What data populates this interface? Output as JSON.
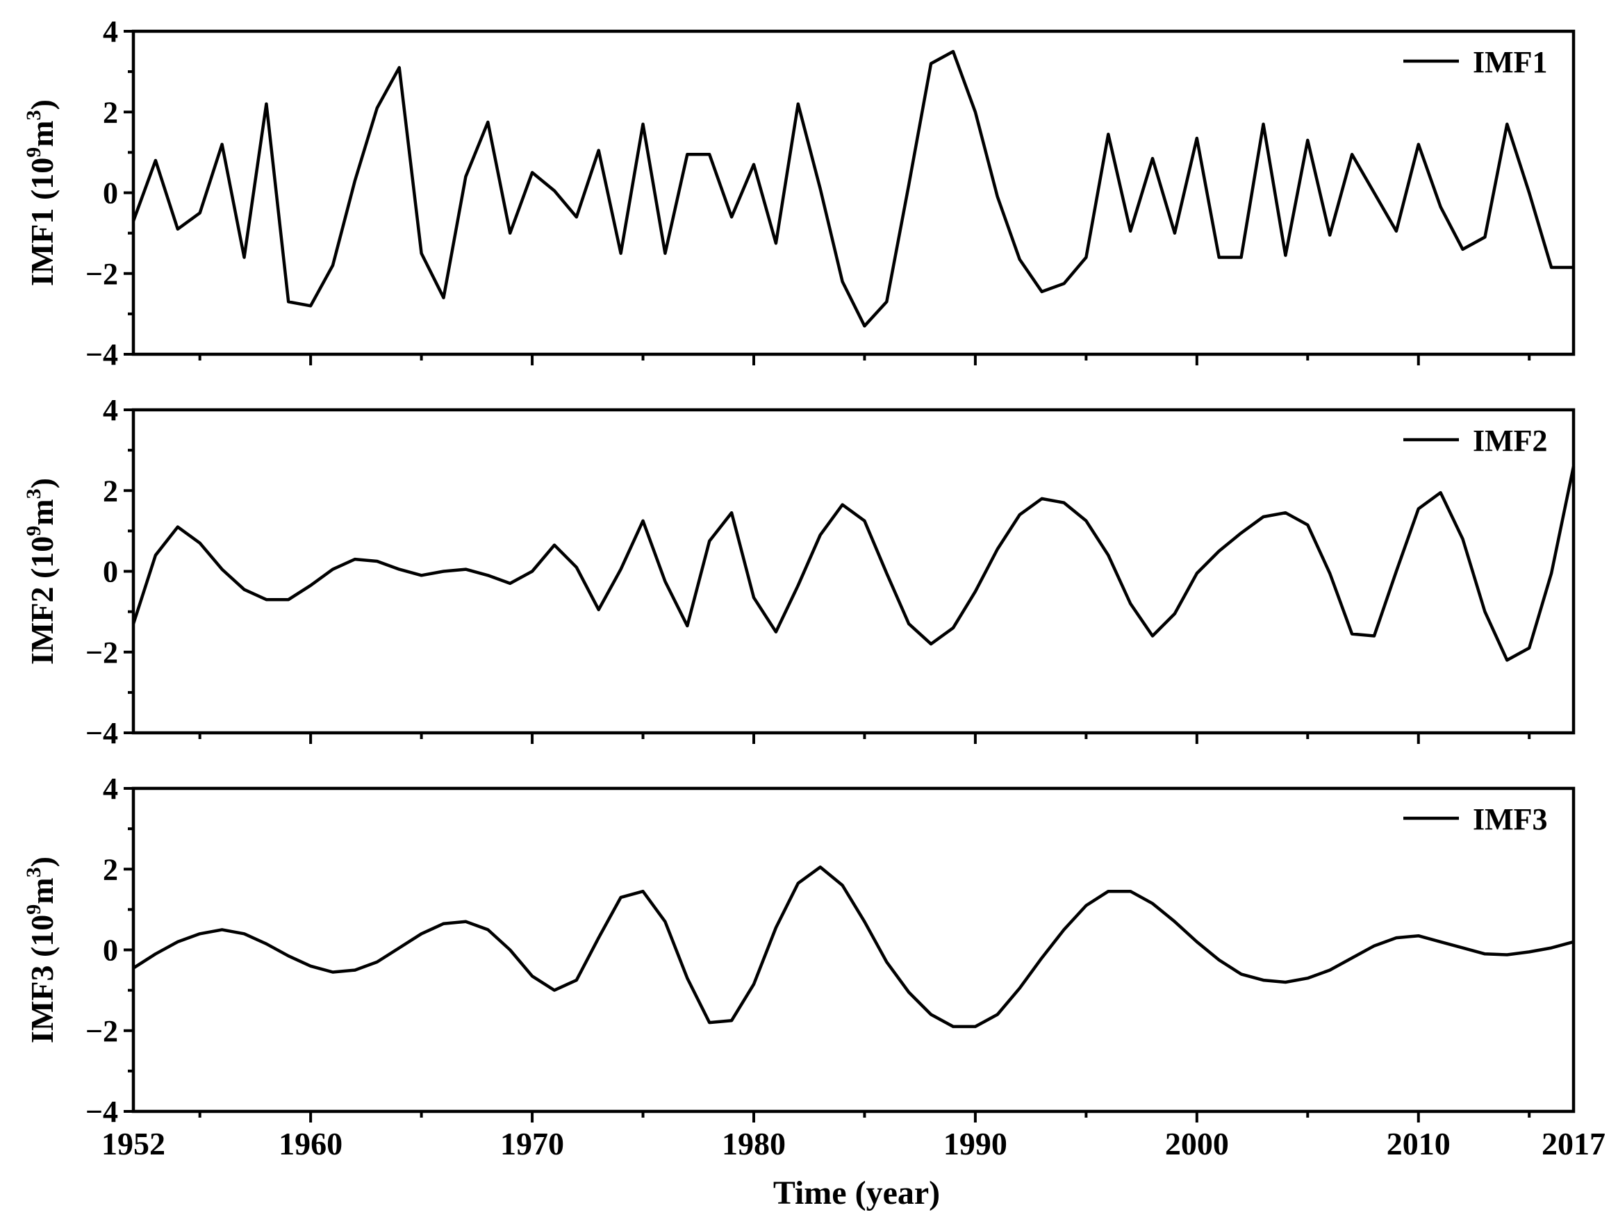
{
  "chart_data": {
    "type": "line",
    "xlabel": "Time (year)",
    "xlim": [
      1952,
      2017
    ],
    "x_tick_labels": [
      "1952",
      "1960",
      "1970",
      "1980",
      "1990",
      "2000",
      "2010",
      "2017"
    ],
    "x_ticks": [
      1952,
      1960,
      1970,
      1980,
      1990,
      2000,
      2010,
      2017
    ],
    "grid": false,
    "legend_placement": "top-right",
    "line_color": "#000000",
    "ylim": [
      -4,
      4
    ],
    "y_ticks": [
      -4,
      -2,
      0,
      2,
      4
    ],
    "y_tick_labels": [
      "−4",
      "−2",
      "0",
      "2",
      "4"
    ],
    "panels": [
      {
        "name": "IMF1",
        "ylabel_main": "IMF1 (10",
        "ylabel_exp1": "9",
        "ylabel_mid": "m",
        "ylabel_exp2": "3",
        "ylabel_end": ")",
        "legend": "IMF1",
        "x": [
          1952,
          1953,
          1954,
          1955,
          1956,
          1957,
          1958,
          1959,
          1960,
          1961,
          1962,
          1963,
          1964,
          1965,
          1966,
          1967,
          1968,
          1969,
          1970,
          1971,
          1972,
          1973,
          1974,
          1975,
          1976,
          1977,
          1978,
          1979,
          1980,
          1981,
          1982,
          1983,
          1984,
          1985,
          1986,
          1987,
          1988,
          1989,
          1990,
          1991,
          1992,
          1993,
          1994,
          1995,
          1996,
          1997,
          1998,
          1999,
          2000,
          2001,
          2002,
          2003,
          2004,
          2005,
          2006,
          2007,
          2008,
          2009,
          2010,
          2011,
          2012,
          2013,
          2014,
          2015,
          2016,
          2017
        ],
        "values": [
          -0.7,
          0.8,
          -0.9,
          -0.5,
          1.2,
          -1.6,
          2.2,
          -2.7,
          -2.8,
          -1.8,
          0.3,
          2.1,
          3.1,
          -1.5,
          -2.6,
          0.4,
          1.75,
          -1.0,
          0.5,
          0.05,
          -0.6,
          1.05,
          -1.5,
          1.7,
          -1.5,
          0.95,
          0.95,
          -0.6,
          0.7,
          -1.25,
          2.2,
          0.1,
          -2.2,
          -3.3,
          -2.7,
          0.2,
          3.2,
          3.5,
          2.0,
          -0.1,
          -1.65,
          -2.45,
          -2.25,
          -1.6,
          1.45,
          -0.95,
          0.85,
          -1.0,
          1.35,
          -1.6,
          -1.6,
          1.7,
          -1.55,
          1.3,
          -1.05,
          0.95,
          0.0,
          -0.95,
          1.2,
          -0.35,
          -1.4,
          -1.1,
          1.7,
          0.0,
          -1.85,
          -1.85
        ]
      },
      {
        "name": "IMF2",
        "ylabel_main": "IMF2 (10",
        "ylabel_exp1": "9",
        "ylabel_mid": "m",
        "ylabel_exp2": "3",
        "ylabel_end": ")",
        "legend": "IMF2",
        "x": [
          1952,
          1953,
          1954,
          1955,
          1956,
          1957,
          1958,
          1959,
          1960,
          1961,
          1962,
          1963,
          1964,
          1965,
          1966,
          1967,
          1968,
          1969,
          1970,
          1971,
          1972,
          1973,
          1974,
          1975,
          1976,
          1977,
          1978,
          1979,
          1980,
          1981,
          1982,
          1983,
          1984,
          1985,
          1986,
          1987,
          1988,
          1989,
          1990,
          1991,
          1992,
          1993,
          1994,
          1995,
          1996,
          1997,
          1998,
          1999,
          2000,
          2001,
          2002,
          2003,
          2004,
          2005,
          2006,
          2007,
          2008,
          2009,
          2010,
          2011,
          2012,
          2013,
          2014,
          2015,
          2016,
          2017
        ],
        "values": [
          -1.3,
          0.4,
          1.1,
          0.7,
          0.05,
          -0.45,
          -0.7,
          -0.7,
          -0.35,
          0.05,
          0.3,
          0.25,
          0.05,
          -0.1,
          0.0,
          0.05,
          -0.1,
          -0.3,
          0.0,
          0.65,
          0.1,
          -0.95,
          0.05,
          1.25,
          -0.25,
          -1.35,
          0.75,
          1.45,
          -0.65,
          -1.5,
          -0.35,
          0.9,
          1.65,
          1.25,
          -0.05,
          -1.3,
          -1.8,
          -1.4,
          -0.5,
          0.55,
          1.4,
          1.8,
          1.7,
          1.25,
          0.4,
          -0.8,
          -1.6,
          -1.05,
          -0.05,
          0.5,
          0.95,
          1.35,
          1.45,
          1.15,
          -0.05,
          -1.55,
          -1.6,
          0.0,
          1.55,
          1.95,
          0.8,
          -1.0,
          -2.2,
          -1.9,
          -0.05,
          2.6
        ]
      },
      {
        "name": "IMF3",
        "ylabel_main": "IMF3 (10",
        "ylabel_exp1": "9",
        "ylabel_mid": "m",
        "ylabel_exp2": "3",
        "ylabel_end": ")",
        "legend": "IMF3",
        "x": [
          1952,
          1953,
          1954,
          1955,
          1956,
          1957,
          1958,
          1959,
          1960,
          1961,
          1962,
          1963,
          1964,
          1965,
          1966,
          1967,
          1968,
          1969,
          1970,
          1971,
          1972,
          1973,
          1974,
          1975,
          1976,
          1977,
          1978,
          1979,
          1980,
          1981,
          1982,
          1983,
          1984,
          1985,
          1986,
          1987,
          1988,
          1989,
          1990,
          1991,
          1992,
          1993,
          1994,
          1995,
          1996,
          1997,
          1998,
          1999,
          2000,
          2001,
          2002,
          2003,
          2004,
          2005,
          2006,
          2007,
          2008,
          2009,
          2010,
          2011,
          2012,
          2013,
          2014,
          2015,
          2016,
          2017
        ],
        "values": [
          -0.45,
          -0.1,
          0.2,
          0.4,
          0.5,
          0.4,
          0.15,
          -0.15,
          -0.4,
          -0.55,
          -0.5,
          -0.3,
          0.05,
          0.4,
          0.65,
          0.7,
          0.5,
          0.0,
          -0.65,
          -1.0,
          -0.75,
          0.3,
          1.3,
          1.45,
          0.7,
          -0.7,
          -1.8,
          -1.75,
          -0.85,
          0.55,
          1.65,
          2.05,
          1.6,
          0.7,
          -0.3,
          -1.05,
          -1.6,
          -1.9,
          -1.9,
          -1.6,
          -0.95,
          -0.2,
          0.5,
          1.1,
          1.45,
          1.45,
          1.15,
          0.7,
          0.2,
          -0.25,
          -0.6,
          -0.75,
          -0.8,
          -0.7,
          -0.5,
          -0.2,
          0.1,
          0.3,
          0.35,
          0.2,
          0.05,
          -0.1,
          -0.12,
          -0.05,
          0.05,
          0.2
        ]
      }
    ]
  }
}
